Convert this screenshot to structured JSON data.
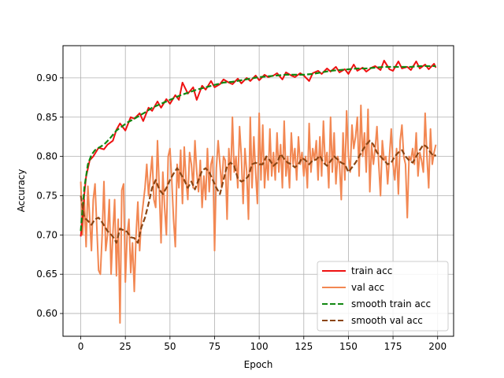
{
  "chart_data": {
    "type": "line",
    "title": "",
    "xlabel": "Epoch",
    "ylabel": "Accuracy",
    "xlim": [
      -9.95,
      208.95
    ],
    "ylim": [
      0.571,
      0.941
    ],
    "xticks": [
      "0",
      "25",
      "50",
      "75",
      "100",
      "125",
      "150",
      "175",
      "200"
    ],
    "yticks": [
      "0.60",
      "0.65",
      "0.70",
      "0.75",
      "0.80",
      "0.85",
      "0.90"
    ],
    "grid": true,
    "legend_position": "lower-right",
    "series": [
      {
        "name": "train acc",
        "color": "#ee1111",
        "style": "solid",
        "x": [
          0,
          1,
          2,
          3,
          5,
          7,
          10,
          13,
          15,
          18,
          20,
          22,
          25,
          28,
          30,
          33,
          35,
          38,
          40,
          43,
          45,
          48,
          50,
          53,
          55,
          57,
          60,
          63,
          65,
          68,
          70,
          73,
          75,
          78,
          80,
          83,
          85,
          88,
          90,
          93,
          95,
          98,
          100,
          103,
          105,
          108,
          110,
          113,
          115,
          118,
          120,
          123,
          125,
          128,
          130,
          133,
          135,
          138,
          140,
          143,
          145,
          148,
          150,
          153,
          155,
          158,
          160,
          163,
          165,
          168,
          170,
          173,
          175,
          178,
          180,
          183,
          185,
          188,
          190,
          193,
          195,
          198,
          199
        ],
        "y": [
          0.698,
          0.722,
          0.752,
          0.774,
          0.795,
          0.8,
          0.811,
          0.809,
          0.815,
          0.82,
          0.834,
          0.842,
          0.833,
          0.85,
          0.848,
          0.855,
          0.845,
          0.862,
          0.858,
          0.87,
          0.862,
          0.873,
          0.867,
          0.878,
          0.872,
          0.894,
          0.88,
          0.888,
          0.872,
          0.89,
          0.885,
          0.896,
          0.888,
          0.892,
          0.898,
          0.894,
          0.892,
          0.899,
          0.893,
          0.9,
          0.896,
          0.903,
          0.897,
          0.904,
          0.901,
          0.903,
          0.906,
          0.898,
          0.907,
          0.903,
          0.901,
          0.906,
          0.903,
          0.896,
          0.906,
          0.909,
          0.905,
          0.912,
          0.908,
          0.914,
          0.907,
          0.911,
          0.905,
          0.917,
          0.909,
          0.913,
          0.908,
          0.913,
          0.915,
          0.91,
          0.922,
          0.911,
          0.909,
          0.921,
          0.912,
          0.914,
          0.91,
          0.921,
          0.912,
          0.917,
          0.911,
          0.918,
          0.913
        ]
      },
      {
        "name": "val acc",
        "color": "#f28752",
        "style": "solid",
        "x": [
          0,
          1,
          2,
          3,
          4,
          5,
          6,
          7,
          8,
          9,
          10,
          11,
          12,
          13,
          14,
          15,
          16,
          17,
          18,
          19,
          20,
          21,
          22,
          23,
          24,
          25,
          26,
          27,
          28,
          29,
          30,
          31,
          32,
          33,
          34,
          35,
          36,
          37,
          38,
          39,
          40,
          41,
          42,
          43,
          44,
          45,
          46,
          47,
          48,
          49,
          50,
          51,
          52,
          53,
          54,
          55,
          56,
          57,
          58,
          59,
          60,
          61,
          62,
          63,
          64,
          65,
          66,
          67,
          68,
          69,
          70,
          71,
          72,
          73,
          74,
          75,
          76,
          77,
          78,
          79,
          80,
          81,
          82,
          83,
          84,
          85,
          86,
          87,
          88,
          89,
          90,
          91,
          92,
          93,
          94,
          95,
          96,
          97,
          98,
          99,
          100,
          101,
          102,
          103,
          104,
          105,
          106,
          107,
          108,
          109,
          110,
          111,
          112,
          113,
          114,
          115,
          116,
          117,
          118,
          119,
          120,
          121,
          122,
          123,
          124,
          125,
          126,
          127,
          128,
          129,
          130,
          131,
          132,
          133,
          134,
          135,
          136,
          137,
          138,
          139,
          140,
          141,
          142,
          143,
          144,
          145,
          146,
          147,
          148,
          149,
          150,
          151,
          152,
          153,
          154,
          155,
          156,
          157,
          158,
          159,
          160,
          161,
          162,
          163,
          164,
          165,
          166,
          167,
          168,
          169,
          170,
          171,
          172,
          173,
          174,
          175,
          176,
          177,
          178,
          179,
          180,
          181,
          182,
          183,
          184,
          185,
          186,
          187,
          188,
          189,
          190,
          191,
          192,
          193,
          194,
          195,
          196,
          197,
          198,
          199
        ],
        "y": [
          0.768,
          0.7,
          0.745,
          0.685,
          0.762,
          0.722,
          0.68,
          0.745,
          0.765,
          0.71,
          0.655,
          0.65,
          0.7,
          0.768,
          0.68,
          0.7,
          0.745,
          0.65,
          0.702,
          0.745,
          0.648,
          0.72,
          0.588,
          0.757,
          0.765,
          0.64,
          0.7,
          0.72,
          0.652,
          0.69,
          0.628,
          0.7,
          0.742,
          0.68,
          0.72,
          0.74,
          0.76,
          0.79,
          0.75,
          0.775,
          0.8,
          0.745,
          0.735,
          0.82,
          0.76,
          0.69,
          0.78,
          0.735,
          0.7,
          0.8,
          0.81,
          0.77,
          0.72,
          0.685,
          0.79,
          0.76,
          0.808,
          0.74,
          0.812,
          0.77,
          0.745,
          0.805,
          0.79,
          0.76,
          0.82,
          0.78,
          0.755,
          0.795,
          0.735,
          0.775,
          0.745,
          0.81,
          0.755,
          0.79,
          0.8,
          0.68,
          0.785,
          0.82,
          0.79,
          0.76,
          0.8,
          0.795,
          0.72,
          0.81,
          0.77,
          0.85,
          0.78,
          0.8,
          0.76,
          0.838,
          0.8,
          0.74,
          0.81,
          0.78,
          0.72,
          0.85,
          0.76,
          0.825,
          0.78,
          0.74,
          0.855,
          0.77,
          0.84,
          0.76,
          0.8,
          0.77,
          0.835,
          0.775,
          0.805,
          0.77,
          0.83,
          0.78,
          0.815,
          0.76,
          0.845,
          0.775,
          0.8,
          0.76,
          0.83,
          0.79,
          0.81,
          0.77,
          0.825,
          0.79,
          0.805,
          0.775,
          0.8,
          0.76,
          0.842,
          0.78,
          0.81,
          0.795,
          0.82,
          0.77,
          0.825,
          0.775,
          0.845,
          0.79,
          0.805,
          0.76,
          0.85,
          0.78,
          0.83,
          0.765,
          0.8,
          0.79,
          0.745,
          0.83,
          0.77,
          0.858,
          0.8,
          0.78,
          0.84,
          0.81,
          0.825,
          0.85,
          0.775,
          0.865,
          0.8,
          0.83,
          0.78,
          0.86,
          0.755,
          0.815,
          0.79,
          0.81,
          0.838,
          0.79,
          0.75,
          0.82,
          0.795,
          0.8,
          0.765,
          0.8,
          0.835,
          0.79,
          0.77,
          0.81,
          0.752,
          0.82,
          0.84,
          0.8,
          0.79,
          0.722,
          0.8,
          0.795,
          0.81,
          0.79,
          0.83,
          0.775,
          0.805,
          0.795,
          0.78,
          0.855,
          0.8,
          0.76,
          0.835,
          0.79,
          0.805,
          0.815
        ]
      },
      {
        "name": "smooth train acc",
        "color": "#118811",
        "style": "dashed",
        "x": [
          0,
          2,
          4,
          6,
          8,
          10,
          13,
          16,
          20,
          23,
          26,
          30,
          33,
          36,
          40,
          44,
          48,
          52,
          56,
          60,
          65,
          70,
          75,
          80,
          85,
          90,
          95,
          100,
          105,
          110,
          115,
          120,
          125,
          130,
          135,
          140,
          145,
          150,
          155,
          160,
          165,
          170,
          175,
          180,
          185,
          190,
          195,
          199
        ],
        "y": [
          0.705,
          0.76,
          0.79,
          0.802,
          0.808,
          0.811,
          0.815,
          0.822,
          0.833,
          0.838,
          0.843,
          0.848,
          0.852,
          0.856,
          0.862,
          0.866,
          0.87,
          0.874,
          0.878,
          0.881,
          0.885,
          0.888,
          0.891,
          0.894,
          0.895,
          0.897,
          0.899,
          0.901,
          0.902,
          0.903,
          0.904,
          0.904,
          0.904,
          0.905,
          0.907,
          0.909,
          0.91,
          0.911,
          0.912,
          0.912,
          0.913,
          0.914,
          0.914,
          0.914,
          0.914,
          0.915,
          0.915,
          0.915
        ]
      },
      {
        "name": "smooth val acc",
        "color": "#8b4513",
        "style": "dashed",
        "x": [
          0,
          2,
          4,
          6,
          8,
          10,
          12,
          15,
          18,
          20,
          22,
          24,
          26,
          28,
          30,
          32,
          34,
          36,
          38,
          40,
          42,
          44,
          46,
          48,
          50,
          52,
          54,
          56,
          58,
          60,
          62,
          64,
          66,
          68,
          70,
          72,
          74,
          76,
          78,
          80,
          82,
          84,
          86,
          88,
          90,
          92,
          94,
          96,
          98,
          100,
          102,
          104,
          106,
          108,
          110,
          112,
          114,
          116,
          118,
          120,
          122,
          124,
          126,
          128,
          130,
          132,
          134,
          136,
          138,
          140,
          142,
          144,
          146,
          148,
          150,
          152,
          154,
          156,
          158,
          160,
          162,
          164,
          166,
          168,
          170,
          172,
          174,
          176,
          178,
          180,
          182,
          184,
          186,
          188,
          190,
          192,
          194,
          196,
          198,
          199
        ],
        "y": [
          0.75,
          0.722,
          0.718,
          0.713,
          0.72,
          0.722,
          0.716,
          0.705,
          0.698,
          0.69,
          0.708,
          0.706,
          0.704,
          0.697,
          0.696,
          0.69,
          0.71,
          0.722,
          0.74,
          0.76,
          0.77,
          0.758,
          0.752,
          0.76,
          0.77,
          0.778,
          0.785,
          0.778,
          0.77,
          0.76,
          0.768,
          0.758,
          0.77,
          0.782,
          0.785,
          0.78,
          0.77,
          0.76,
          0.752,
          0.77,
          0.788,
          0.792,
          0.788,
          0.772,
          0.768,
          0.77,
          0.775,
          0.79,
          0.792,
          0.79,
          0.79,
          0.8,
          0.795,
          0.788,
          0.792,
          0.803,
          0.797,
          0.792,
          0.79,
          0.786,
          0.79,
          0.798,
          0.795,
          0.79,
          0.795,
          0.796,
          0.801,
          0.792,
          0.788,
          0.794,
          0.8,
          0.796,
          0.792,
          0.79,
          0.78,
          0.786,
          0.792,
          0.8,
          0.808,
          0.815,
          0.82,
          0.815,
          0.805,
          0.8,
          0.795,
          0.79,
          0.792,
          0.8,
          0.805,
          0.808,
          0.8,
          0.795,
          0.792,
          0.8,
          0.808,
          0.815,
          0.812,
          0.805,
          0.8,
          0.802
        ]
      }
    ]
  }
}
